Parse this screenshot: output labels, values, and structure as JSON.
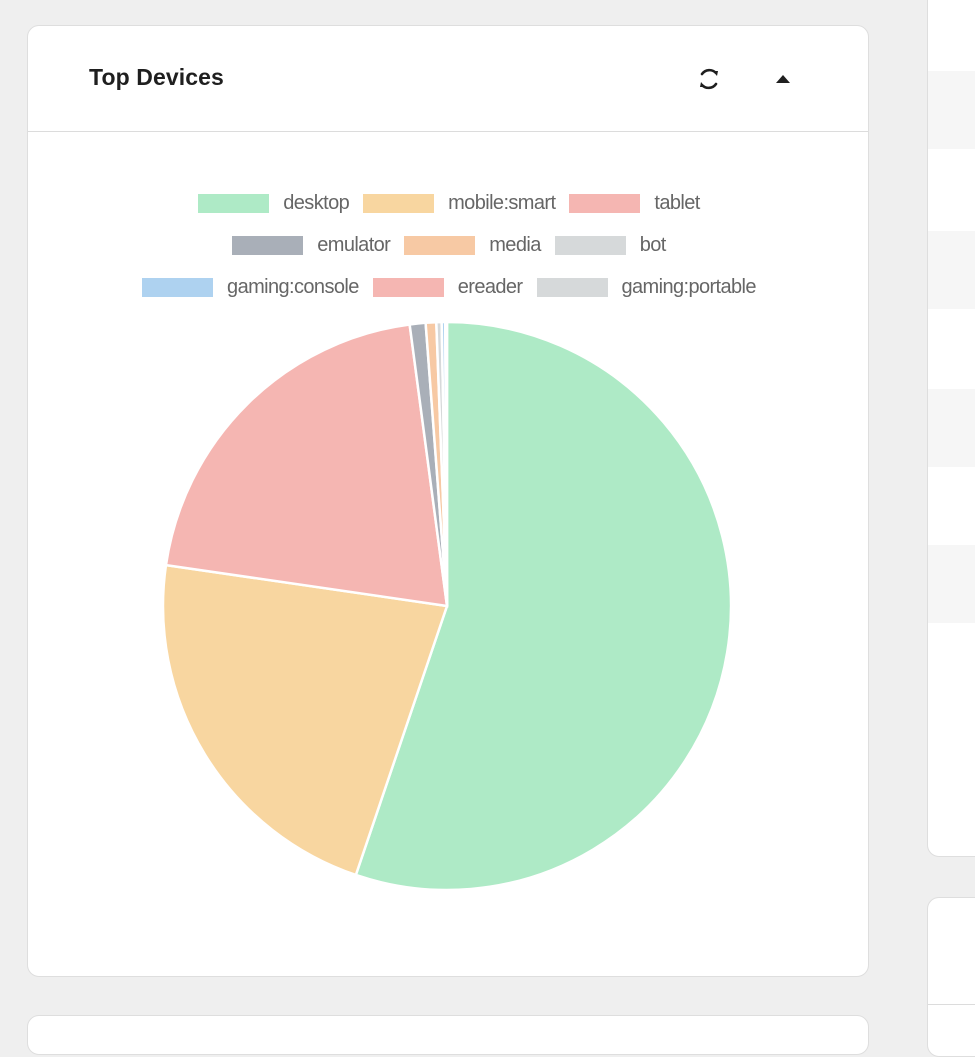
{
  "card": {
    "title": "Top Devices",
    "refresh_icon": "refresh-icon",
    "collapse_icon": "caret-up-icon"
  },
  "chart_data": {
    "type": "pie",
    "title": "",
    "legend_position": "top",
    "categories": [
      "desktop",
      "mobile:smart",
      "tablet",
      "emulator",
      "media",
      "bot",
      "gaming:console",
      "ereader",
      "gaming:portable"
    ],
    "values": [
      55.2,
      22.1,
      20.6,
      0.9,
      0.6,
      0.3,
      0.2,
      0.05,
      0.05
    ],
    "colors": [
      "#aeeac6",
      "#f8d6a0",
      "#f5b6b2",
      "#a9afb8",
      "#f7c9a4",
      "#d6d9da",
      "#aed2f0",
      "#f5b6b2",
      "#d6d9da"
    ],
    "legend_rows": [
      [
        0,
        1,
        2
      ],
      [
        3,
        4,
        5
      ],
      [
        6,
        7,
        8
      ]
    ]
  }
}
